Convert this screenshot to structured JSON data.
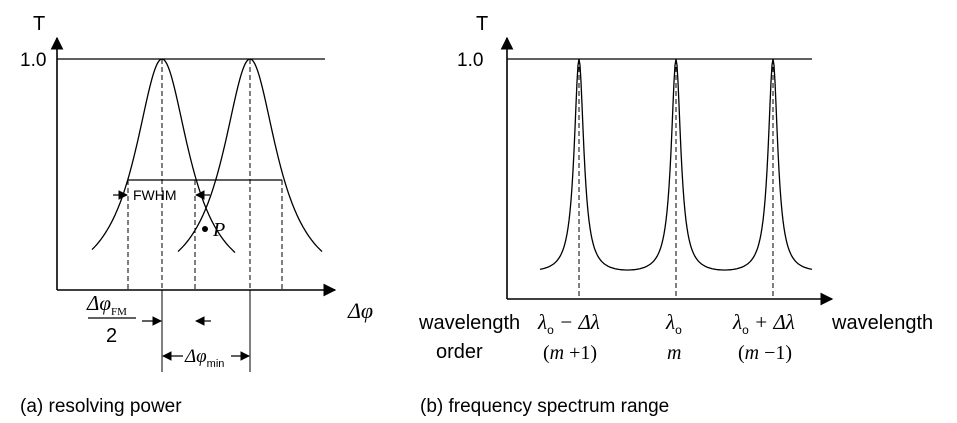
{
  "panel_a": {
    "y_axis_label": "T",
    "x_axis_label": "Δφ",
    "y_tick": "1.0",
    "fwhm_label": "FWHM",
    "point_label": "P",
    "fm_numerator": "Δφ",
    "fm_subscript": "FM",
    "fm_denominator": "2",
    "min_symbol": "Δφ",
    "min_subscript": "min",
    "caption": "(a) resolving power"
  },
  "panel_b": {
    "y_axis_label": "T",
    "y_tick": "1.0",
    "x_axis_label": "wavelength",
    "row_label_1": "wavelength",
    "row_label_2": "order",
    "peaks": [
      {
        "lambda": "λ",
        "sub": "o",
        "suffix": " − Δλ",
        "order_pre": "(",
        "order_var": "m",
        "order_post": " +1)"
      },
      {
        "lambda": "λ",
        "sub": "o",
        "suffix": "",
        "order_pre": "",
        "order_var": "m",
        "order_post": ""
      },
      {
        "lambda": "λ",
        "sub": "o",
        "suffix": " + Δλ",
        "order_pre": "(",
        "order_var": "m",
        "order_post": " −1)"
      }
    ],
    "caption": "(b) frequency spectrum range"
  }
}
